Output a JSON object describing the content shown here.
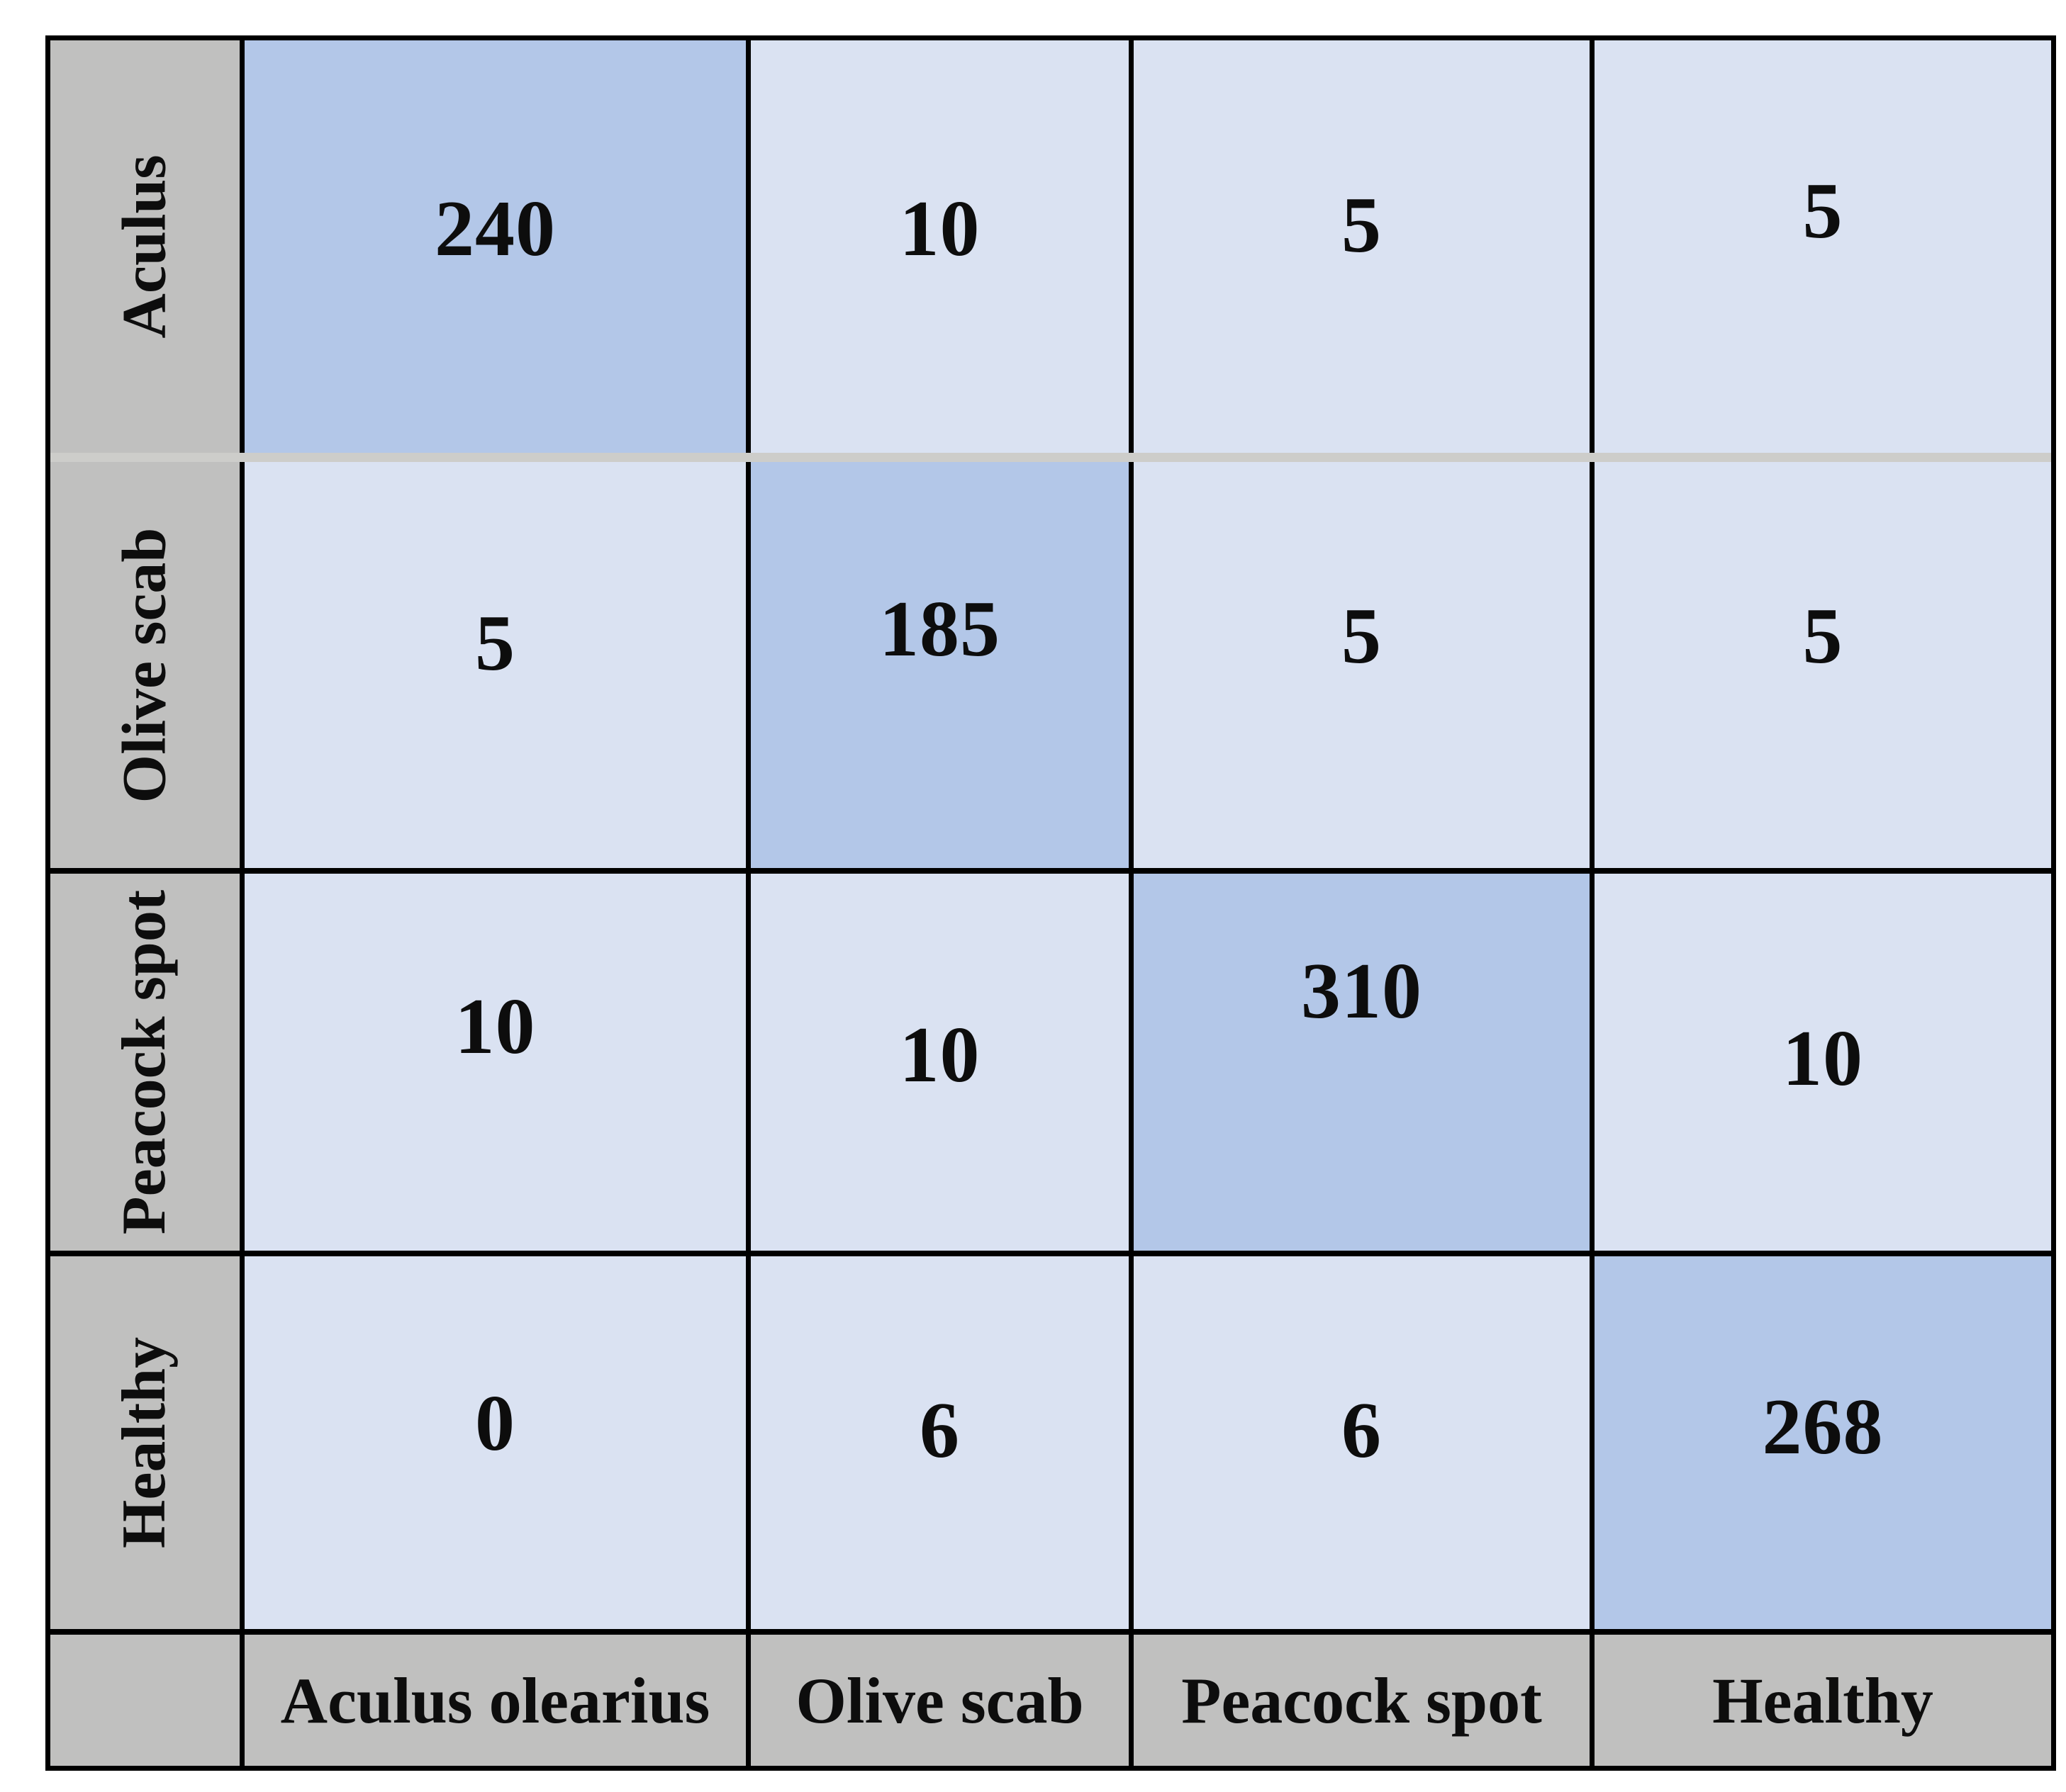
{
  "table": {
    "corner_label": "",
    "row_headers": [
      "Aculus",
      "Olive scab",
      "Peacock spot",
      "Healthy"
    ],
    "col_headers": [
      "Aculus olearius",
      "Olive scab",
      "Peacock spot",
      "Healthy"
    ],
    "rows": [
      [
        240,
        10,
        5,
        5
      ],
      [
        5,
        185,
        5,
        5
      ],
      [
        10,
        10,
        310,
        10
      ],
      [
        0,
        6,
        6,
        268
      ]
    ]
  },
  "colors": {
    "diagonal_cell": "#b3c7e8",
    "off_diagonal_cell": "#dae2f2",
    "header_bg": "#c0c0bf",
    "row_separator": "#cdcdca",
    "grid_border": "#000000"
  },
  "chart_data": {
    "type": "heatmap",
    "x_categories": [
      "Aculus olearius",
      "Olive scab",
      "Peacock spot",
      "Healthy"
    ],
    "y_categories": [
      "Aculus",
      "Olive scab",
      "Peacock spot",
      "Healthy"
    ],
    "matrix": [
      [
        240,
        10,
        5,
        5
      ],
      [
        5,
        185,
        5,
        5
      ],
      [
        10,
        10,
        310,
        10
      ],
      [
        0,
        6,
        6,
        268
      ]
    ],
    "x_axis_position": "bottom",
    "y_axis_position": "left",
    "diagonal_highlighted": true,
    "grid": true,
    "legend": false
  }
}
